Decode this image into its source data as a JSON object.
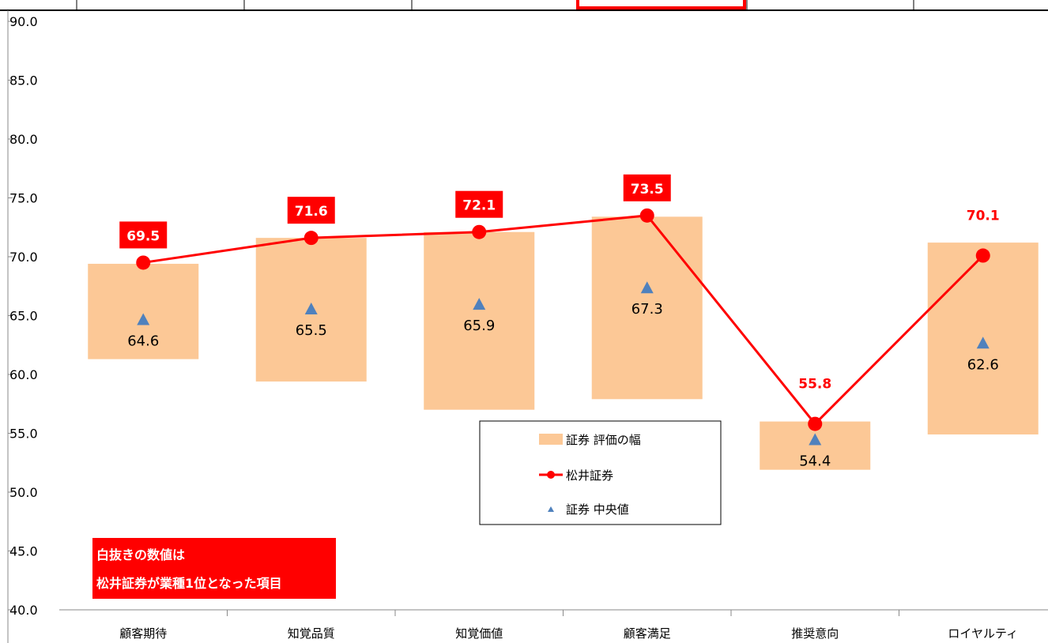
{
  "chart_data": {
    "type": "bar",
    "categories": [
      "顧客期待",
      "知覚品質",
      "知覚価値",
      "顧客満足",
      "推奨意向",
      "ロイヤルティ"
    ],
    "ylim": [
      40,
      90
    ],
    "ytick_step": 5,
    "ytick_labels": [
      "40.0",
      "45.0",
      "50.0",
      "55.0",
      "60.0",
      "65.0",
      "70.0",
      "75.0",
      "80.0",
      "85.0",
      "90.0"
    ],
    "grid": false,
    "legend_position": "bottom-center",
    "series": [
      {
        "name": "証券 評価の幅",
        "kind": "floating-bar",
        "low": [
          61.3,
          59.4,
          57.0,
          57.9,
          51.9,
          54.9
        ],
        "high": [
          69.4,
          71.6,
          72.1,
          73.4,
          56.0,
          71.2
        ],
        "color": "#FCC896"
      },
      {
        "name": "松井証券",
        "kind": "line",
        "values": [
          69.5,
          71.6,
          72.1,
          73.5,
          55.8,
          70.1
        ],
        "labels": [
          "69.5",
          "71.6",
          "72.1",
          "73.5",
          "55.8",
          "70.1"
        ],
        "highlighted": [
          true,
          true,
          true,
          true,
          false,
          false
        ],
        "color": "#FF0000"
      },
      {
        "name": "証券 中央値",
        "kind": "marker",
        "values": [
          64.6,
          65.5,
          65.9,
          67.3,
          54.4,
          62.6
        ],
        "labels": [
          "64.6",
          "65.5",
          "65.9",
          "67.3",
          "54.4",
          "62.6"
        ],
        "color": "#4F81BD"
      }
    ],
    "annotation": {
      "lines": [
        "白抜きの数値は",
        "松井証券が業種1位となった項目"
      ],
      "bg_color": "#FF0000",
      "text_color": "#FFFFFF"
    }
  }
}
